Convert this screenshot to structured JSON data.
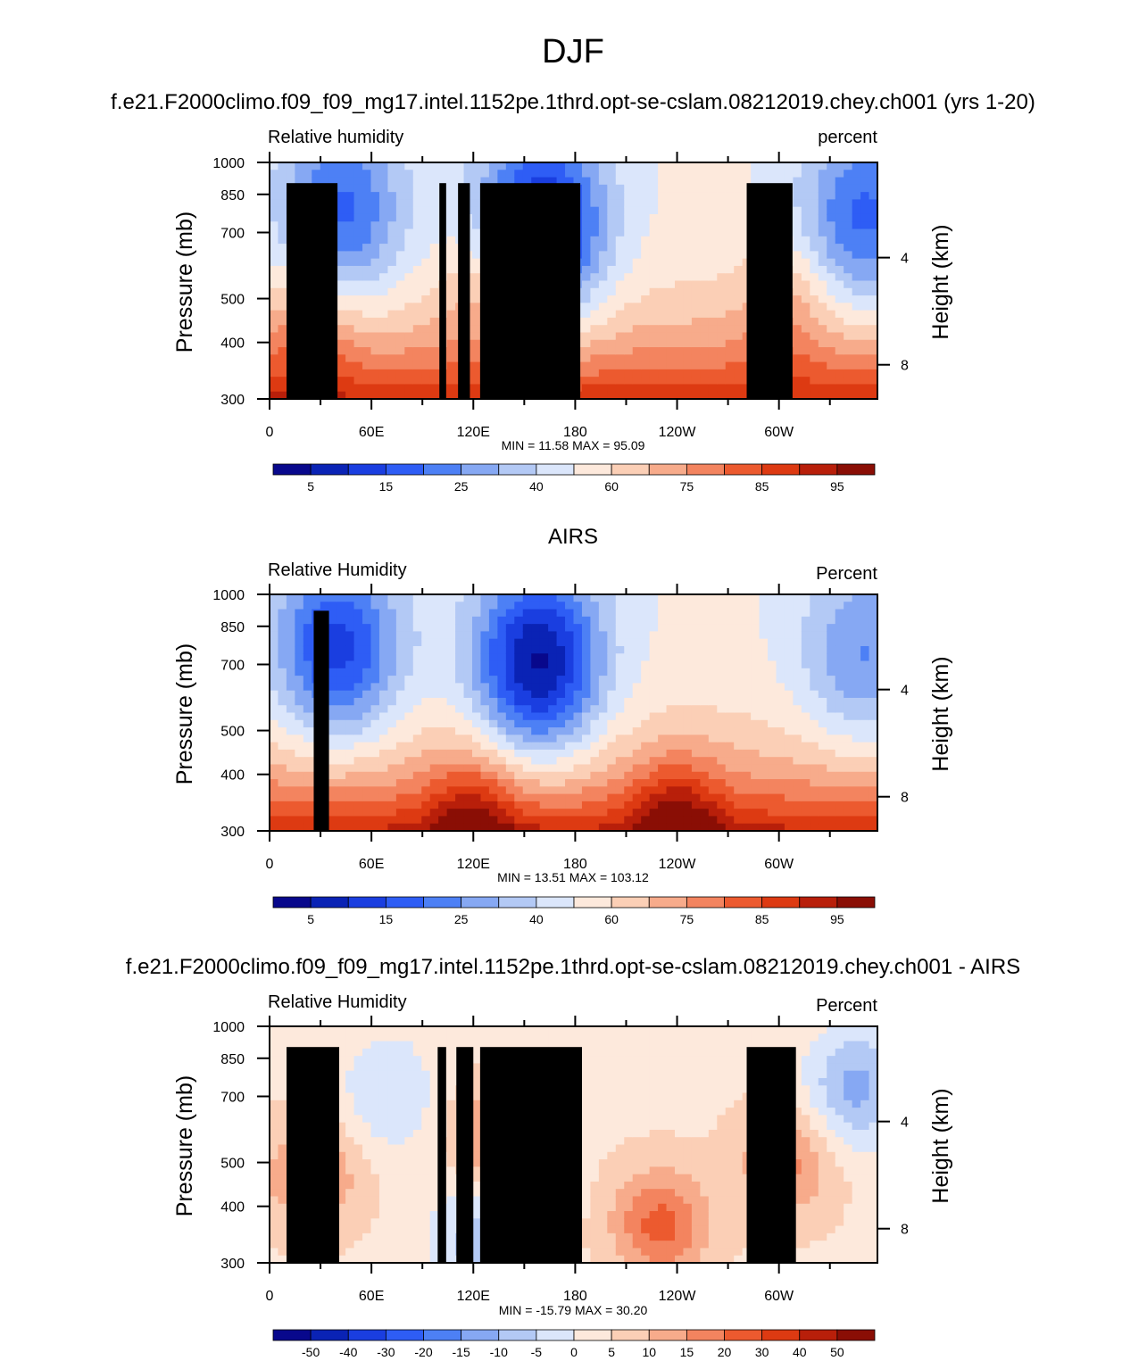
{
  "figure": {
    "main_title": "DJF",
    "panels_note": "Three zonal cross-sections of relative humidity (pressure vs longitude)"
  },
  "colors": {
    "diverging_12_to_95": [
      "#08088c",
      "#0a23b5",
      "#1a3ee0",
      "#2e5df5",
      "#4d80f5",
      "#86a8f3",
      "#b3c9f5",
      "#dbe6fb",
      "#fde9dc",
      "#fbcfb6",
      "#f7ab8b",
      "#f3845f",
      "#ec5a2f",
      "#dd3a12",
      "#b81f0a",
      "#8a0e05"
    ],
    "terrain": "#000000"
  },
  "chart_data": [
    {
      "type": "heatmap",
      "title": "f.e21.F2000climo.f09_f09_mg17.intel.1152pe.1thrd.opt-se-cslam.08212019.chey.ch001 (yrs 1-20)",
      "left_subtitle": "Relative humidity",
      "right_subtitle": "percent",
      "ylabel": "Pressure (mb)",
      "ylabel_right": "Height (km)",
      "yticks": [
        "300",
        "400",
        "500",
        "700",
        "850",
        "1000"
      ],
      "yticks_right": [
        "8",
        "4"
      ],
      "xticks": [
        "0",
        "60E",
        "120E",
        "180",
        "120W",
        "60W"
      ],
      "stats": "MIN =  11.58  MAX =  95.09",
      "colorbar_labels": [
        "5",
        "15",
        "25",
        "40",
        "60",
        "75",
        "85",
        "95"
      ],
      "levels": [
        5,
        10,
        15,
        20,
        25,
        30,
        40,
        50,
        60,
        70,
        75,
        80,
        85,
        90,
        95
      ],
      "xlim": [
        0,
        358
      ],
      "ylim": [
        1000,
        300
      ],
      "features": {
        "dry_cores": [
          [
            160,
            420,
            0.95
          ],
          [
            42,
            390,
            0.6
          ],
          [
            350,
            400,
            0.6
          ]
        ],
        "moist_cores": [
          [
            130,
            560,
            0.7
          ],
          [
            25,
            700,
            0.6
          ],
          [
            305,
            620,
            0.5
          ]
        ],
        "boundary_layer": 0.95,
        "terrain": [
          [
            10,
            40,
            900
          ],
          [
            28,
            36,
            850
          ],
          [
            100,
            104,
            900
          ],
          [
            111,
            118,
            900
          ],
          [
            124,
            183,
            900
          ],
          [
            281,
            308,
            900
          ]
        ]
      }
    },
    {
      "type": "heatmap",
      "title": "AIRS",
      "left_subtitle": "Relative Humidity",
      "right_subtitle": "Percent",
      "ylabel": "Pressure (mb)",
      "ylabel_right": "Height (km)",
      "yticks": [
        "300",
        "400",
        "500",
        "700",
        "850",
        "1000"
      ],
      "yticks_right": [
        "8",
        "4"
      ],
      "xticks": [
        "0",
        "60E",
        "120E",
        "180",
        "120W",
        "60W"
      ],
      "stats": "MIN =  13.51  MAX = 103.12",
      "colorbar_labels": [
        "5",
        "15",
        "25",
        "40",
        "60",
        "75",
        "85",
        "95"
      ],
      "levels": [
        5,
        10,
        15,
        20,
        25,
        30,
        40,
        50,
        60,
        70,
        75,
        80,
        85,
        90,
        95
      ],
      "xlim": [
        0,
        358
      ],
      "ylim": [
        1000,
        300
      ],
      "features": {
        "dry_cores": [
          [
            158,
            430,
            1.0
          ],
          [
            40,
            400,
            0.75
          ],
          [
            350,
            420,
            0.45
          ]
        ],
        "moist_cores": [
          [
            120,
            950,
            0.9
          ],
          [
            240,
            960,
            1.0
          ]
        ],
        "boundary_layer": 1.0,
        "terrain": [
          [
            26,
            35,
            920
          ]
        ]
      }
    },
    {
      "type": "heatmap",
      "title": "f.e21.F2000climo.f09_f09_mg17.intel.1152pe.1thrd.opt-se-cslam.08212019.chey.ch001 - AIRS",
      "left_subtitle": "Relative Humidity",
      "right_subtitle": "Percent",
      "ylabel": "Pressure (mb)",
      "ylabel_right": "Height (km)",
      "yticks": [
        "300",
        "400",
        "500",
        "700",
        "850",
        "1000"
      ],
      "yticks_right": [
        "8",
        "4"
      ],
      "xticks": [
        "0",
        "60E",
        "120E",
        "180",
        "120W",
        "60W"
      ],
      "stats": "MIN = -15.79  MAX =  30.20",
      "colorbar_labels": [
        "-50",
        "-40",
        "-30",
        "-20",
        "-15",
        "-10",
        "-5",
        "0",
        "5",
        "10",
        "15",
        "20",
        "30",
        "40",
        "50"
      ],
      "levels": [
        -50,
        -40,
        -30,
        -20,
        -15,
        -10,
        -5,
        0,
        5,
        10,
        15,
        20,
        30,
        40,
        50
      ],
      "xlim": [
        0,
        358
      ],
      "ylim": [
        1000,
        300
      ],
      "features": {
        "positive_cores": [
          [
            140,
            540,
            0.9
          ],
          [
            230,
            820,
            0.85
          ],
          [
            25,
            640,
            0.6
          ],
          [
            305,
            600,
            0.6
          ]
        ],
        "negative_cores": [
          [
            345,
            410,
            0.7
          ],
          [
            70,
            420,
            0.4
          ],
          [
            150,
            650,
            0.3
          ],
          [
            120,
            900,
            0.45
          ]
        ],
        "terrain": [
          [
            10,
            41,
            900
          ],
          [
            27,
            37,
            850
          ],
          [
            99,
            104,
            900
          ],
          [
            110,
            120,
            900
          ],
          [
            124,
            184,
            900
          ],
          [
            281,
            310,
            900
          ]
        ]
      }
    }
  ]
}
